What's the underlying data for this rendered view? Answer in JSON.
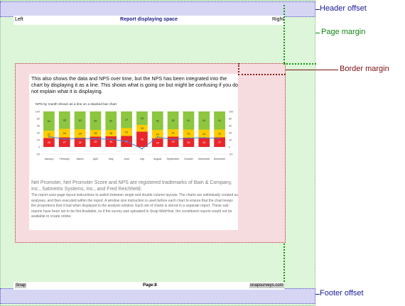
{
  "header": {
    "left": "Left",
    "center": "Report displaying space",
    "right": "Right"
  },
  "footer": {
    "left": "Snap",
    "center": "Page:8",
    "right": "snapsurveys.com"
  },
  "labels": {
    "header_offset": "Header offset",
    "page_margin": "Page margin",
    "border_margin": "Border margin",
    "footer_offset": "Footer offset"
  },
  "content": {
    "intro": "This also shows the data and NPS over time, but the NPS has been integrated into the chart by displaying it as a line. This shows what is going on but might be confusing if you do not explain what it is displaying.",
    "trademark": "Net Promoter, Net Promoter Score and NPS are registered trademarks of Bain & Company, Inc., Satmetrix Systems, Inc., and Fred Reichheld.",
    "notes": "The report uses page layout instructions to switch between single and double column layouts. The charts are individually created as analyses, and then executed within the report. A window size instruction is used before each chart to ensure that the chart keeps the proportions that it had when displayed in the analysis window. Each set of charts is stored in a separate report. These sub-reports have been set to be Not Available, so if the survey was uploaded to Snap WebHost, the constituent reports would not be available to create online."
  },
  "colors": {
    "callout_blue": "#1a1a9a",
    "callout_green": "#118811",
    "callout_red": "#7a1010",
    "promoters": "#8dc63f",
    "passives": "#ffcc00",
    "detractors": "#e8262b",
    "nps_line": "#4a7cc9"
  },
  "chart_data": {
    "type": "bar",
    "title": "NPS by month shown as a line on a stacked bar chart",
    "categories": [
      "January",
      "February",
      "March",
      "April",
      "May",
      "June",
      "July",
      "August",
      "September",
      "October",
      "November",
      "December"
    ],
    "series": [
      {
        "values": [
          25,
          27,
          26,
          29,
          30,
          31,
          43,
          24,
          29,
          26,
          25,
          27
        ]
      },
      {
        "values": [
          21,
          24,
          24,
          19,
          18,
          22,
          19,
          24,
          21,
          23,
          24,
          22
        ]
      },
      {
        "values": [
          54,
          49,
          50,
          52,
          52,
          47,
          38,
          52,
          50,
          51,
          51,
          51
        ]
      }
    ],
    "line": {
      "values": [
        29,
        22,
        24,
        23,
        22,
        16,
        -5,
        28,
        21,
        25,
        26,
        24
      ]
    },
    "y_left_ticks": [
      "100",
      "80",
      "60",
      "40",
      "20",
      "0",
      "-20"
    ],
    "y_right_ticks": [
      "100",
      "80",
      "60",
      "40",
      "20",
      "0",
      "-20"
    ],
    "ylim": [
      -20,
      100
    ]
  }
}
